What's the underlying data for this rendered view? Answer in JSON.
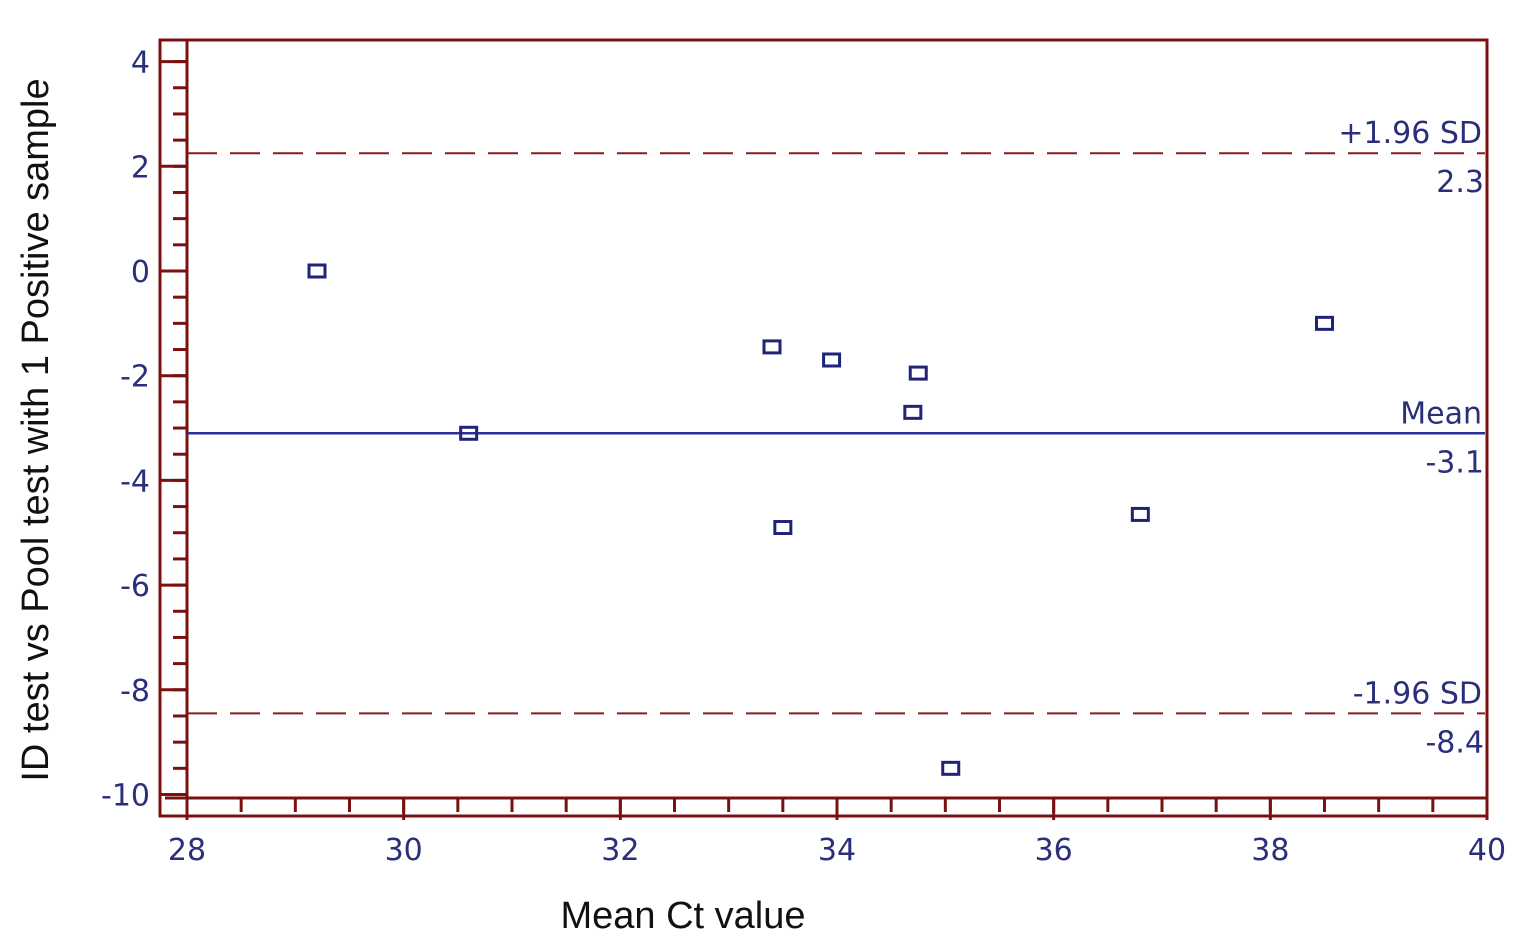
{
  "chart_data": {
    "type": "scatter",
    "xlabel": "Mean Ct value",
    "ylabel": "ID test vs Pool test with 1 Positive sample",
    "xlim": [
      28,
      40
    ],
    "ylim": [
      -10.5,
      4.3
    ],
    "x_ticks": [
      28,
      30,
      32,
      34,
      36,
      38,
      40
    ],
    "y_ticks": [
      4,
      2,
      0,
      -2,
      -4,
      -6,
      -8,
      -10
    ],
    "x_tick_labels": [
      "28",
      "30",
      "32",
      "34",
      "36",
      "38",
      "40"
    ],
    "y_tick_labels": [
      "4",
      "2",
      "0",
      "-2",
      "-4",
      "-6",
      "-8",
      "-10"
    ],
    "points": [
      {
        "x": 29.2,
        "y": 0.0
      },
      {
        "x": 30.6,
        "y": -3.1
      },
      {
        "x": 33.4,
        "y": -1.45
      },
      {
        "x": 33.5,
        "y": -4.9
      },
      {
        "x": 33.95,
        "y": -1.7
      },
      {
        "x": 34.7,
        "y": -2.7
      },
      {
        "x": 34.75,
        "y": -1.95
      },
      {
        "x": 35.05,
        "y": -9.5
      },
      {
        "x": 36.8,
        "y": -4.65
      },
      {
        "x": 38.5,
        "y": -1.0
      }
    ],
    "reference_lines": [
      {
        "name": "+1.96 SD",
        "value": 2.25,
        "value_label": "2.3",
        "style": "dashed",
        "color": "#8b1c1c"
      },
      {
        "name": "Mean",
        "value": -3.1,
        "value_label": "-3.1",
        "style": "solid",
        "color": "#2b2f9a"
      },
      {
        "name": "-1.96 SD",
        "value": -8.45,
        "value_label": "-8.4",
        "style": "dashed",
        "color": "#8b1c1c"
      }
    ],
    "grid": false,
    "colors": {
      "axis": "#7a1010",
      "marker": "#1f237a",
      "text": "#2b2f7a"
    }
  }
}
